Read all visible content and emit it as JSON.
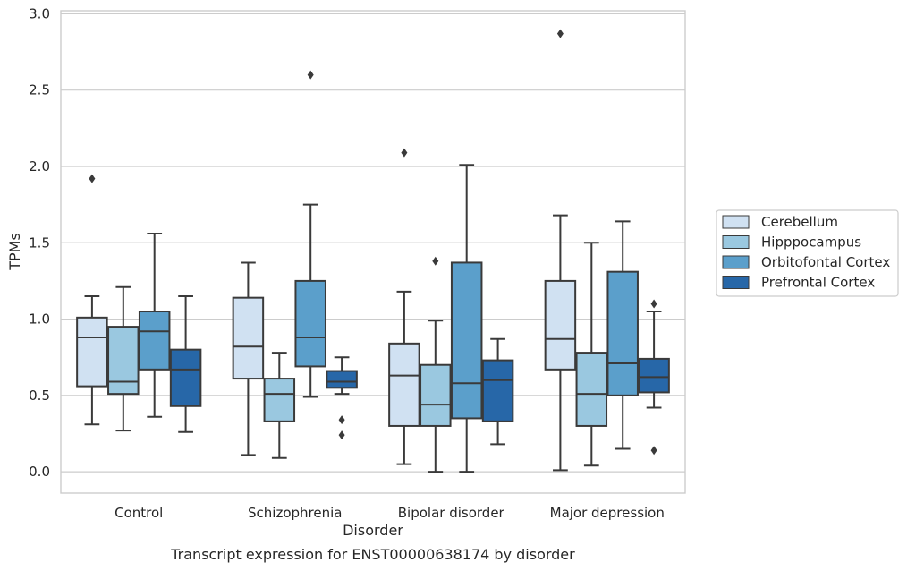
{
  "chart_data": {
    "type": "box",
    "title": "",
    "xlabel": "Disorder",
    "ylabel": "TPMs",
    "caption": "Transcript expression for ENST00000638174 by disorder",
    "categories": [
      "Control",
      "Schizophrenia",
      "Bipolar disorder",
      "Major depression"
    ],
    "yticks": [
      "0.0",
      "0.5",
      "1.0",
      "1.5",
      "2.0",
      "2.5",
      "3.0"
    ],
    "ylim": [
      -0.14,
      3.02
    ],
    "grid": "horizontal",
    "legend_position": "right",
    "series": [
      {
        "name": "Cerebellum",
        "color": "#d0e1f2",
        "boxes": [
          {
            "whisker_low": 0.31,
            "q1": 0.56,
            "median": 0.88,
            "q3": 1.01,
            "whisker_high": 1.15,
            "outliers": [
              1.92
            ]
          },
          {
            "whisker_low": 0.11,
            "q1": 0.61,
            "median": 0.82,
            "q3": 1.14,
            "whisker_high": 1.37,
            "outliers": []
          },
          {
            "whisker_low": 0.05,
            "q1": 0.3,
            "median": 0.63,
            "q3": 0.84,
            "whisker_high": 1.18,
            "outliers": [
              2.09
            ]
          },
          {
            "whisker_low": 0.01,
            "q1": 0.67,
            "median": 0.87,
            "q3": 1.25,
            "whisker_high": 1.68,
            "outliers": [
              2.87
            ]
          }
        ]
      },
      {
        "name": "Hipppocampus",
        "color": "#9ac8e0",
        "boxes": [
          {
            "whisker_low": 0.27,
            "q1": 0.51,
            "median": 0.59,
            "q3": 0.95,
            "whisker_high": 1.21,
            "outliers": []
          },
          {
            "whisker_low": 0.09,
            "q1": 0.33,
            "median": 0.51,
            "q3": 0.61,
            "whisker_high": 0.78,
            "outliers": []
          },
          {
            "whisker_low": 0.0,
            "q1": 0.3,
            "median": 0.44,
            "q3": 0.7,
            "whisker_high": 0.99,
            "outliers": [
              1.38
            ]
          },
          {
            "whisker_low": 0.04,
            "q1": 0.3,
            "median": 0.51,
            "q3": 0.78,
            "whisker_high": 1.5,
            "outliers": []
          }
        ]
      },
      {
        "name": "Orbitofontal Cortex",
        "color": "#5b9fcb",
        "boxes": [
          {
            "whisker_low": 0.36,
            "q1": 0.67,
            "median": 0.92,
            "q3": 1.05,
            "whisker_high": 1.56,
            "outliers": []
          },
          {
            "whisker_low": 0.49,
            "q1": 0.69,
            "median": 0.88,
            "q3": 1.25,
            "whisker_high": 1.75,
            "outliers": [
              2.6
            ]
          },
          {
            "whisker_low": 0.0,
            "q1": 0.35,
            "median": 0.58,
            "q3": 1.37,
            "whisker_high": 2.01,
            "outliers": []
          },
          {
            "whisker_low": 0.15,
            "q1": 0.5,
            "median": 0.71,
            "q3": 1.31,
            "whisker_high": 1.64,
            "outliers": []
          }
        ]
      },
      {
        "name": "Prefrontal Cortex",
        "color": "#2767a8",
        "boxes": [
          {
            "whisker_low": 0.26,
            "q1": 0.43,
            "median": 0.67,
            "q3": 0.8,
            "whisker_high": 1.15,
            "outliers": []
          },
          {
            "whisker_low": 0.51,
            "q1": 0.55,
            "median": 0.59,
            "q3": 0.66,
            "whisker_high": 0.75,
            "outliers": [
              0.34,
              0.24
            ]
          },
          {
            "whisker_low": 0.18,
            "q1": 0.33,
            "median": 0.6,
            "q3": 0.73,
            "whisker_high": 0.87,
            "outliers": []
          },
          {
            "whisker_low": 0.42,
            "q1": 0.52,
            "median": 0.62,
            "q3": 0.74,
            "whisker_high": 1.05,
            "outliers": [
              1.1,
              0.14
            ]
          }
        ]
      }
    ]
  }
}
